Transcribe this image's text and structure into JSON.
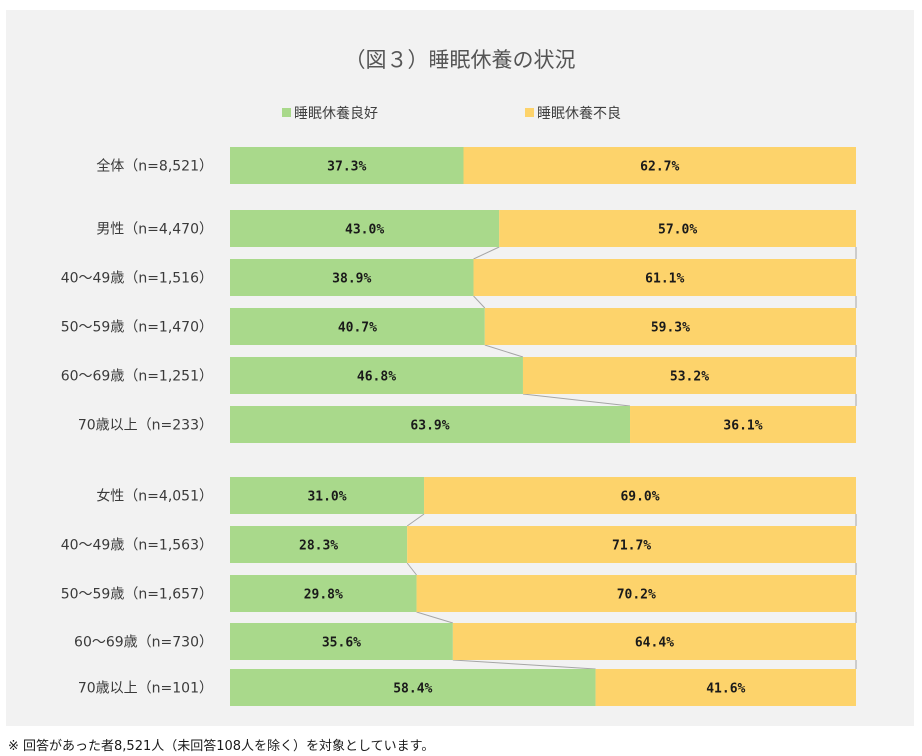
{
  "chart_data": {
    "type": "bar",
    "orientation": "horizontal",
    "stacked": "percent",
    "title": "（図３）睡眠休養の状況",
    "legend_position": "top",
    "categories": [
      "全体（n=8,521）",
      "男性（n=4,470）",
      "40～49歳（n=1,516）",
      "50～59歳（n=1,470）",
      "60～69歳（n=1,251）",
      "70歳以上（n=233）",
      "女性（n=4,051）",
      "40～49歳（n=1,563）",
      "50～59歳（n=1,657）",
      "60～69歳（n=730）",
      "70歳以上（n=101）"
    ],
    "series": [
      {
        "name": "睡眠休養良好",
        "color": "#a9d98b",
        "values": [
          37.3,
          43.0,
          38.9,
          40.7,
          46.8,
          63.9,
          31.0,
          28.3,
          29.8,
          35.6,
          58.4
        ],
        "labels": [
          "37.3%",
          "43.0%",
          "38.9%",
          "40.7%",
          "46.8%",
          "63.9%",
          "31.0%",
          "28.3%",
          "29.8%",
          "35.6%",
          "58.4%"
        ]
      },
      {
        "name": "睡眠休養不良",
        "color": "#fdd36b",
        "values": [
          62.7,
          57.0,
          61.1,
          59.3,
          53.2,
          36.1,
          69.0,
          71.7,
          70.2,
          64.4,
          41.6
        ],
        "labels": [
          "62.7%",
          "57.0%",
          "61.1%",
          "59.3%",
          "53.2%",
          "36.1%",
          "69.0%",
          "71.7%",
          "70.2%",
          "64.4%",
          "41.6%"
        ]
      }
    ],
    "xlim": [
      0,
      100
    ],
    "grid": false,
    "series_lines": true
  },
  "footnote": "※ 回答があった者8,521人（未回答108人を除く）を対象としています。"
}
